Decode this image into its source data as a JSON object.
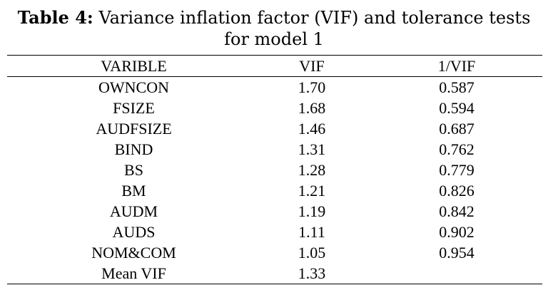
{
  "caption": {
    "label": "Table 4:",
    "text_line1": "Variance inflation factor (VIF) and tolerance tests",
    "text_line2": "for model 1"
  },
  "table": {
    "headers": [
      "VARIBLE",
      "VIF",
      "1/VIF"
    ],
    "rows": [
      [
        "OWNCON",
        "1.70",
        "0.587"
      ],
      [
        "FSIZE",
        "1.68",
        "0.594"
      ],
      [
        "AUDFSIZE",
        "1.46",
        "0.687"
      ],
      [
        "BIND",
        "1.31",
        "0.762"
      ],
      [
        "BS",
        "1.28",
        "0.779"
      ],
      [
        "BM",
        "1.21",
        "0.826"
      ],
      [
        "AUDM",
        "1.19",
        "0.842"
      ],
      [
        "AUDS",
        "1.11",
        "0.902"
      ],
      [
        "NOM&COM",
        "1.05",
        "0.954"
      ],
      [
        "Mean VIF",
        "1.33",
        ""
      ]
    ]
  }
}
